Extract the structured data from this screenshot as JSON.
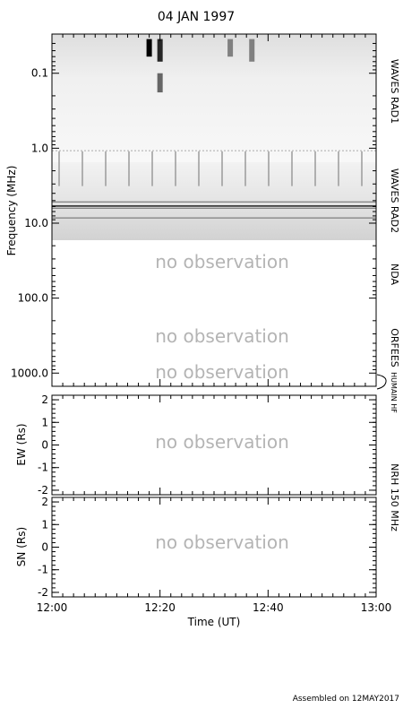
{
  "title": "04 JAN 1997",
  "footer": "Assembled on 12MAY2017",
  "no_observation_text": "no observation",
  "chart_data": [
    {
      "panel": "dynamic-spectrum",
      "type": "heatmap",
      "title": "04 JAN 1997",
      "ylabel": "Frequency (MHz)",
      "yscale": "log",
      "y_inverted": true,
      "ylim": [
        0.03,
        1500
      ],
      "xlim": [
        "12:00",
        "13:00"
      ],
      "y_ticks": [
        0.1,
        1.0,
        10.0,
        100.0,
        1000.0
      ],
      "y_tick_labels": [
        "0.1",
        "1.0",
        "10.0",
        "100.0",
        "1000.0"
      ],
      "instrument_bands": [
        {
          "name": "WAVES RAD1",
          "f_range_mhz": [
            0.02,
            1.07
          ],
          "observed": true
        },
        {
          "name": "WAVES RAD2",
          "f_range_mhz": [
            1.07,
            14.0
          ],
          "observed": true
        },
        {
          "name": "NDA",
          "f_range_mhz": [
            14.0,
            80.0
          ],
          "observed": false
        },
        {
          "name": "ORFEES",
          "f_range_mhz": [
            140,
            1000
          ],
          "observed": false
        },
        {
          "name": "HUMAIN HF",
          "f_range_mhz": [
            1000,
            1500
          ],
          "observed": false
        }
      ],
      "bursts": [
        {
          "time": "12:18",
          "f_range_mhz": [
            0.035,
            0.06
          ],
          "intensity": 1.0
        },
        {
          "time": "12:20",
          "f_range_mhz": [
            0.035,
            0.07
          ],
          "intensity": 0.85
        },
        {
          "time": "12:20",
          "f_range_mhz": [
            0.1,
            0.18
          ],
          "intensity": 0.6
        },
        {
          "time": "12:33",
          "f_range_mhz": [
            0.035,
            0.06
          ],
          "intensity": 0.5
        },
        {
          "time": "12:37",
          "f_range_mhz": [
            0.035,
            0.07
          ],
          "intensity": 0.5
        }
      ]
    },
    {
      "panel": "nrh-ew",
      "type": "line",
      "ylabel": "EW (Rs)",
      "ylim": [
        -2.2,
        2.2
      ],
      "y_ticks": [
        -2,
        -1,
        0,
        1,
        2
      ],
      "y_tick_labels": [
        "-2",
        "-1",
        "0",
        "1",
        "2"
      ],
      "series": []
    },
    {
      "panel": "nrh-sn",
      "type": "line",
      "ylabel": "SN (Rs)",
      "xlabel": "Time (UT)",
      "ylim": [
        -2.2,
        2.2
      ],
      "y_ticks": [
        -2,
        -1,
        0,
        1,
        2
      ],
      "y_tick_labels": [
        "-2",
        "-1",
        "0",
        "1",
        "2"
      ],
      "x_ticks": [
        "12:00",
        "12:20",
        "12:40",
        "13:00"
      ],
      "series": []
    }
  ],
  "side_labels": {
    "rad1": "WAVES RAD1",
    "rad2": "WAVES RAD2",
    "nda": "NDA",
    "orfees": "ORFEES",
    "humain": "HUMAIN HF",
    "nrh": "NRH 150 MHz"
  }
}
